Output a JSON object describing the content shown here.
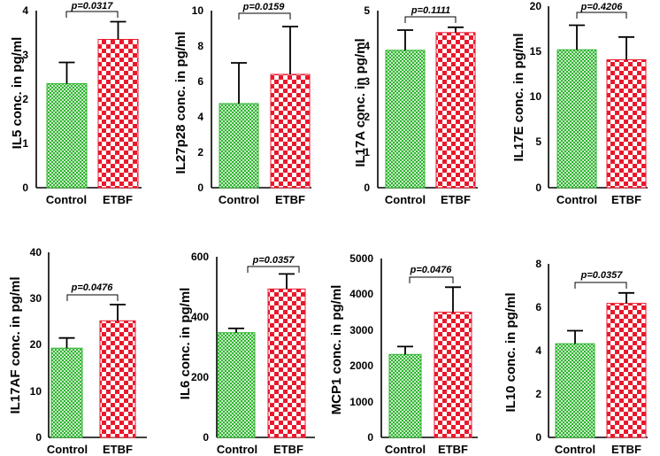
{
  "chart_data": [
    {
      "type": "bar",
      "ylabel": "IL5 conc. in pg/ml",
      "categories": [
        "Control",
        "ETBF"
      ],
      "values": [
        2.35,
        3.35
      ],
      "errors": [
        0.48,
        0.4
      ],
      "ylim": [
        0,
        4
      ],
      "yticks": [
        "0",
        "1",
        "2",
        "3",
        "4"
      ],
      "pvalue": "p=0.0317"
    },
    {
      "type": "bar",
      "ylabel": "IL27p28 conc. in pg/ml",
      "categories": [
        "Control",
        "ETBF"
      ],
      "values": [
        4.75,
        6.4
      ],
      "errors": [
        2.3,
        2.7
      ],
      "ylim": [
        0,
        10
      ],
      "yticks": [
        "0",
        "2",
        "4",
        "6",
        "8",
        "10"
      ],
      "pvalue": "p=0.0159"
    },
    {
      "type": "bar",
      "ylabel": "IL17A conc. in pg/ml",
      "categories": [
        "Control",
        "ETBF"
      ],
      "values": [
        3.88,
        4.38
      ],
      "errors": [
        0.57,
        0.15
      ],
      "ylim": [
        0,
        5
      ],
      "yticks": [
        "0",
        "1",
        "2",
        "3",
        "4",
        "5"
      ],
      "pvalue": "p=0.1111"
    },
    {
      "type": "bar",
      "ylabel": "IL17E conc. in pg/ml",
      "categories": [
        "Control",
        "ETBF"
      ],
      "values": [
        15.2,
        14.1
      ],
      "errors": [
        2.7,
        2.5
      ],
      "ylim": [
        0,
        20
      ],
      "yticks": [
        "0",
        "5",
        "10",
        "15",
        "20"
      ],
      "pvalue": "p=0.4206"
    },
    {
      "type": "bar",
      "ylabel": "IL17AF conc. in pg/ml",
      "categories": [
        "Control",
        "ETBF"
      ],
      "values": [
        19.3,
        25.2
      ],
      "errors": [
        2.2,
        3.5
      ],
      "ylim": [
        0,
        40
      ],
      "yticks": [
        "0",
        "10",
        "20",
        "30",
        "40"
      ],
      "pvalue": "p=0.0476"
    },
    {
      "type": "bar",
      "ylabel": "IL6 conc. in pg/ml",
      "categories": [
        "Control",
        "ETBF"
      ],
      "values": [
        348,
        493
      ],
      "errors": [
        14,
        50
      ],
      "ylim": [
        0,
        600
      ],
      "yticks": [
        "0",
        "200",
        "400",
        "600"
      ],
      "pvalue": "p=0.0357"
    },
    {
      "type": "bar",
      "ylabel": "MCP1 conc. in pg/ml",
      "categories": [
        "Control",
        "ETBF"
      ],
      "values": [
        2320,
        3500
      ],
      "errors": [
        220,
        700
      ],
      "ylim": [
        0,
        5000
      ],
      "yticks": [
        "0",
        "1000",
        "2000",
        "3000",
        "4000",
        "5000"
      ],
      "pvalue": "p=0.0476"
    },
    {
      "type": "bar",
      "ylabel": "IL10 conc. in pg/ml",
      "categories": [
        "Control",
        "ETBF"
      ],
      "values": [
        4.32,
        6.18
      ],
      "errors": [
        0.6,
        0.48
      ],
      "ylim": [
        0,
        8
      ],
      "yticks": [
        "0",
        "2",
        "4",
        "6",
        "8"
      ],
      "pvalue": "p=0.0357"
    }
  ],
  "colors": {
    "control_stripe": "#2fb52f",
    "control_fill": "#c9ecc9",
    "etbf_check": "#e8192c",
    "etbf_fill": "#ffffff",
    "axis": "#000000"
  }
}
